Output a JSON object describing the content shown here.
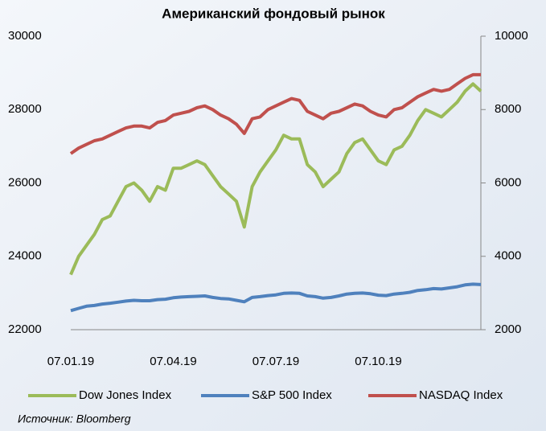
{
  "chart_data": {
    "type": "line",
    "title": "Американский фондовый рынок",
    "source": "Источник: Bloomberg",
    "categories": [
      "07.01.19",
      null,
      null,
      null,
      null,
      null,
      null,
      null,
      null,
      null,
      null,
      null,
      null,
      "07.04.19",
      null,
      null,
      null,
      null,
      null,
      null,
      null,
      null,
      null,
      null,
      null,
      null,
      "07.07.19",
      null,
      null,
      null,
      null,
      null,
      null,
      null,
      null,
      null,
      null,
      null,
      null,
      "07.10.19",
      null,
      null,
      null,
      null,
      null,
      null,
      null,
      null,
      null,
      null,
      null,
      null,
      null
    ],
    "series": [
      {
        "name": "Dow Jones Index",
        "color": "#9bbb59",
        "values": [
          23500,
          24000,
          24300,
          24600,
          25000,
          25100,
          25500,
          25900,
          26000,
          25800,
          25500,
          25900,
          25800,
          26400,
          26400,
          26500,
          26600,
          26500,
          26200,
          25900,
          25700,
          25500,
          24800,
          25900,
          26300,
          26600,
          26900,
          27300,
          27200,
          27200,
          26500,
          26300,
          25900,
          26100,
          26300,
          26800,
          27100,
          27200,
          26900,
          26600,
          26500,
          26900,
          27000,
          27300,
          27700,
          28000,
          27900,
          27800,
          28000,
          28200,
          28500,
          28700,
          28500
        ]
      },
      {
        "name": "S&P 500 Index",
        "color": "#4f81bd",
        "axis": "y2",
        "values": [
          2520,
          2580,
          2640,
          2660,
          2700,
          2720,
          2750,
          2780,
          2800,
          2790,
          2790,
          2820,
          2830,
          2870,
          2890,
          2900,
          2910,
          2920,
          2880,
          2850,
          2840,
          2800,
          2760,
          2880,
          2900,
          2930,
          2950,
          2990,
          3000,
          2990,
          2920,
          2900,
          2860,
          2880,
          2920,
          2970,
          2990,
          3000,
          2980,
          2940,
          2930,
          2970,
          2990,
          3020,
          3070,
          3090,
          3120,
          3110,
          3140,
          3170,
          3220,
          3240,
          3230
        ]
      },
      {
        "name": "NASDAQ Index",
        "color": "#c0504d",
        "axis": "y2",
        "values": [
          6800,
          6950,
          7050,
          7150,
          7200,
          7300,
          7400,
          7500,
          7550,
          7550,
          7500,
          7650,
          7700,
          7850,
          7900,
          7950,
          8050,
          8100,
          8000,
          7850,
          7750,
          7600,
          7350,
          7750,
          7800,
          8000,
          8100,
          8200,
          8300,
          8250,
          7950,
          7850,
          7750,
          7900,
          7950,
          8050,
          8150,
          8100,
          7950,
          7850,
          7800,
          8000,
          8050,
          8200,
          8350,
          8450,
          8550,
          8500,
          8550,
          8700,
          8850,
          8950,
          8950
        ]
      }
    ],
    "ylim": [
      22000,
      30000
    ],
    "yticks": [
      22000,
      24000,
      26000,
      28000,
      30000
    ],
    "y2lim": [
      2000,
      10000
    ],
    "y2ticks": [
      2000,
      4000,
      6000,
      8000,
      10000
    ],
    "grid": false
  }
}
